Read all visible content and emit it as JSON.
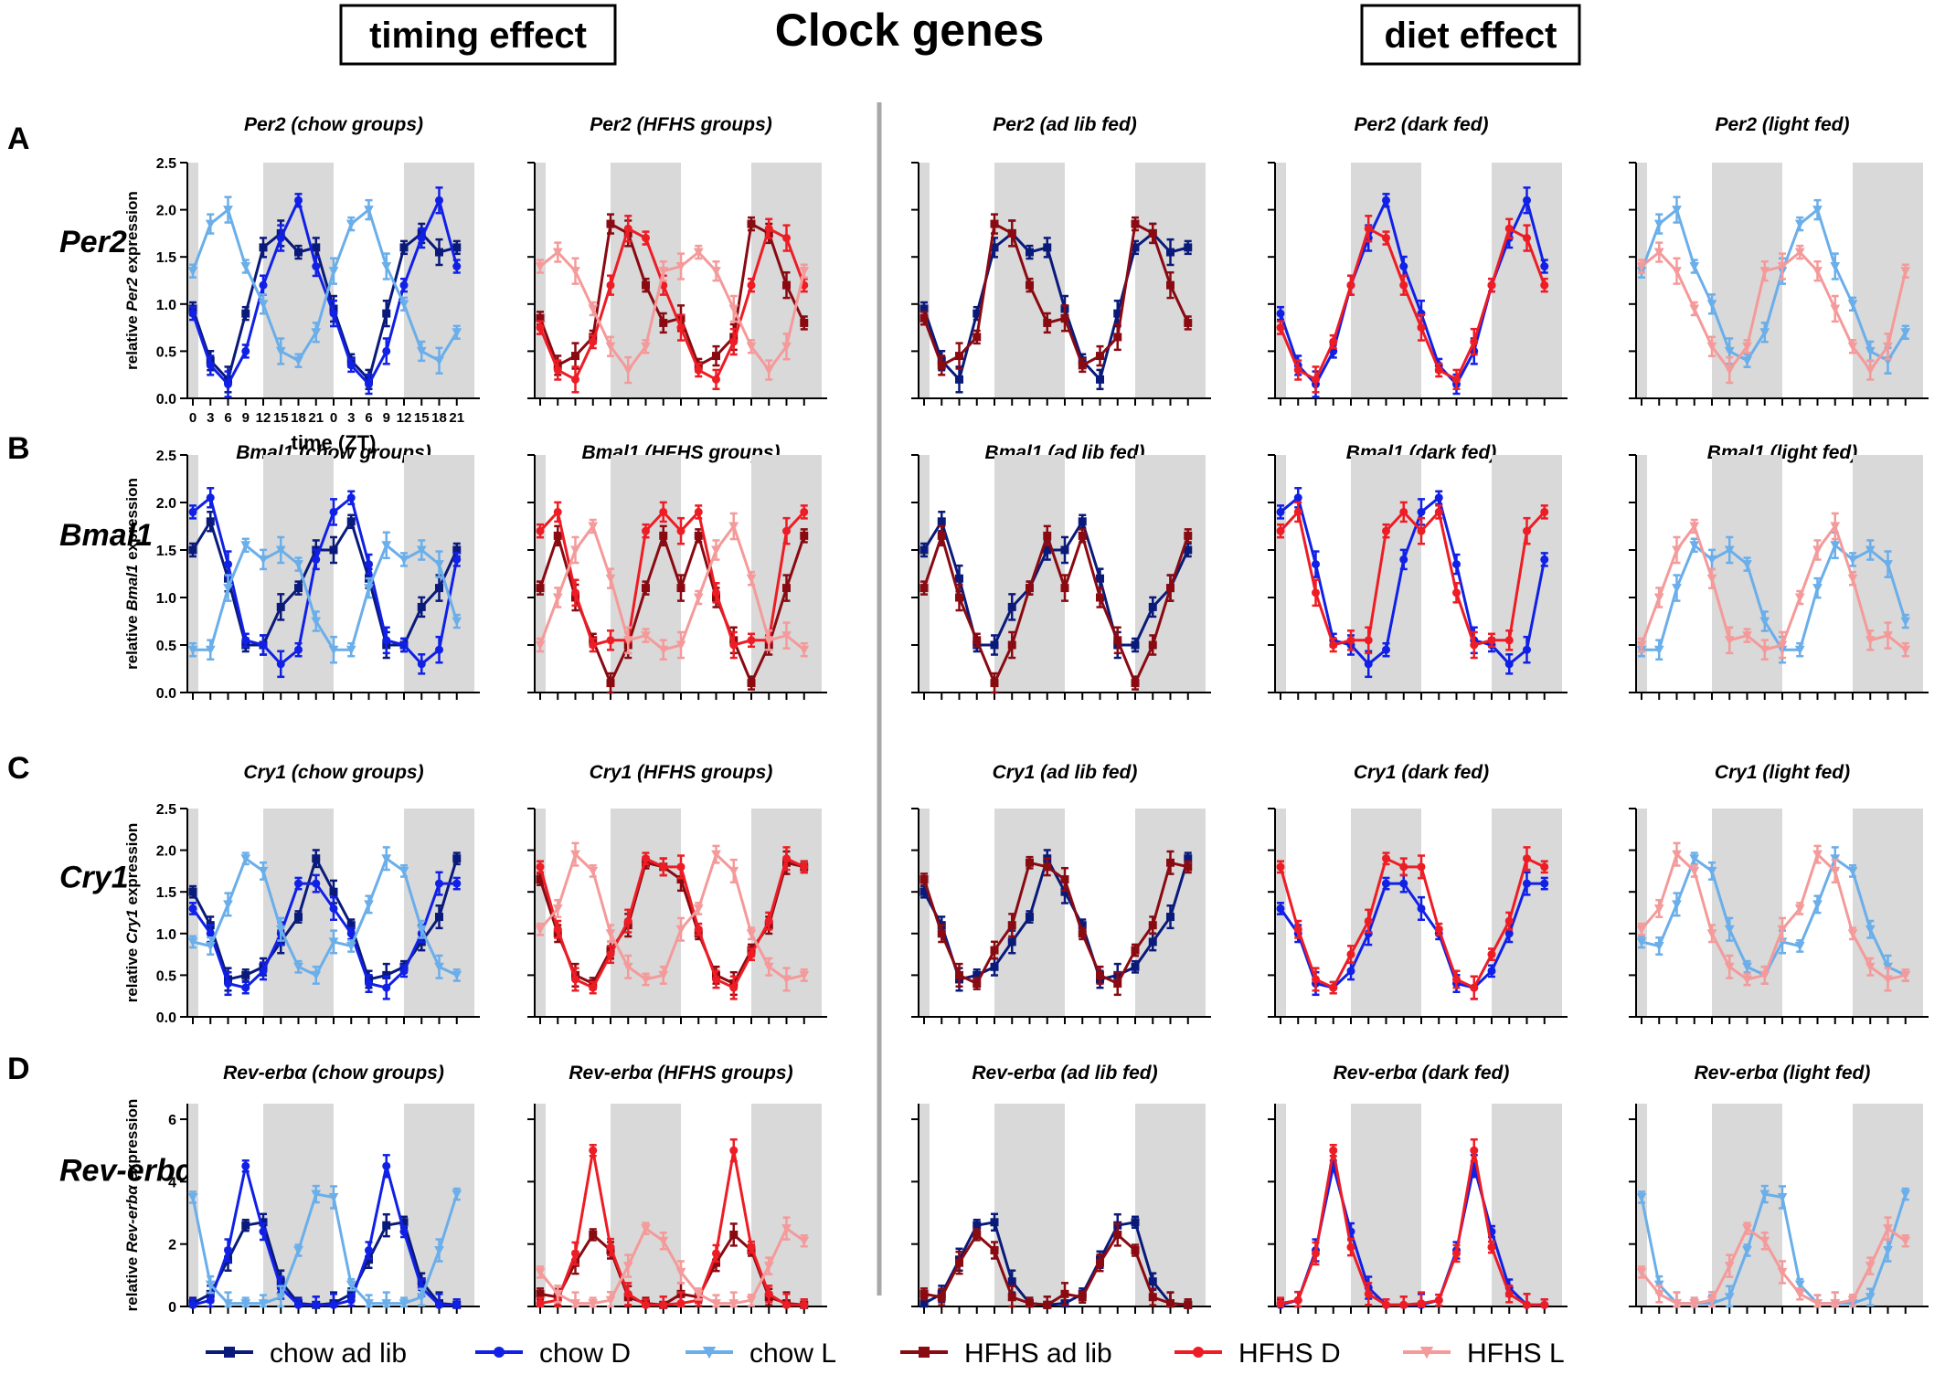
{
  "header": {
    "left_box": "timing effect",
    "title": "Clock genes",
    "right_box": "diet effect"
  },
  "axes_text": {
    "time_label": "time (ZT)",
    "ylabel_prefix": "relative ",
    "ylabel_suffix": " expression",
    "xticks": [
      "0",
      "3",
      "6",
      "9",
      "12",
      "15",
      "18",
      "21",
      "0",
      "3",
      "6",
      "9",
      "12",
      "15",
      "18",
      "21"
    ]
  },
  "series_legend": [
    {
      "key": "chow_adlib",
      "name": "chow ad lib",
      "color": "#0a1a7a",
      "marker": "square"
    },
    {
      "key": "chow_D",
      "name": "chow D",
      "color": "#1020e6",
      "marker": "circle"
    },
    {
      "key": "chow_L",
      "name": "chow L",
      "color": "#6aaeea",
      "marker": "triangle-down"
    },
    {
      "key": "hfhs_adlib",
      "name": "HFHS ad lib",
      "color": "#8a0a12",
      "marker": "square"
    },
    {
      "key": "hfhs_D",
      "name": "HFHS D",
      "color": "#ee1c24",
      "marker": "circle"
    },
    {
      "key": "hfhs_L",
      "name": "HFHS L",
      "color": "#f49a9a",
      "marker": "triangle-down"
    }
  ],
  "chart_data": {
    "type": "line",
    "x": [
      0,
      3,
      6,
      9,
      12,
      15,
      18,
      21,
      24,
      27,
      30,
      33,
      36,
      39,
      42,
      45
    ],
    "dark_phases": [
      [
        12,
        24
      ],
      [
        36,
        48
      ]
    ],
    "panel_columns": [
      {
        "title_suffix": "(chow groups)",
        "series": [
          "chow_adlib",
          "chow_D",
          "chow_L"
        ]
      },
      {
        "title_suffix": "(HFHS groups)",
        "series": [
          "hfhs_adlib",
          "hfhs_D",
          "hfhs_L"
        ]
      },
      {
        "title_suffix": "(ad lib fed)",
        "series": [
          "chow_adlib",
          "hfhs_adlib"
        ]
      },
      {
        "title_suffix": "(dark fed)",
        "series": [
          "chow_D",
          "hfhs_D"
        ]
      },
      {
        "title_suffix": "(light fed)",
        "series": [
          "chow_L",
          "hfhs_L"
        ]
      }
    ],
    "genes": [
      {
        "letter": "A",
        "name": "Per2",
        "ylim": [
          0,
          2.5
        ],
        "yticks": [
          "0.0",
          "0.5",
          "1.0",
          "1.5",
          "2.0",
          "2.5"
        ],
        "series": {
          "chow_adlib": [
            0.95,
            0.4,
            0.2,
            0.9,
            1.6,
            1.75,
            1.55,
            1.6,
            0.95,
            0.4,
            0.2,
            0.9,
            1.6,
            1.75,
            1.55,
            1.6
          ],
          "chow_D": [
            0.9,
            0.35,
            0.15,
            0.5,
            1.2,
            1.7,
            2.1,
            1.4,
            0.9,
            0.35,
            0.15,
            0.5,
            1.2,
            1.7,
            2.1,
            1.4
          ],
          "chow_L": [
            1.35,
            1.85,
            2.0,
            1.4,
            1.0,
            0.5,
            0.4,
            0.7,
            1.35,
            1.85,
            2.0,
            1.4,
            1.0,
            0.5,
            0.4,
            0.7
          ],
          "hfhs_adlib": [
            0.85,
            0.35,
            0.45,
            0.65,
            1.85,
            1.75,
            1.2,
            0.8,
            0.85,
            0.35,
            0.45,
            0.65,
            1.85,
            1.75,
            1.2,
            0.8
          ],
          "hfhs_D": [
            0.75,
            0.3,
            0.2,
            0.6,
            1.2,
            1.8,
            1.7,
            1.2,
            0.75,
            0.3,
            0.2,
            0.6,
            1.2,
            1.8,
            1.7,
            1.2
          ],
          "hfhs_L": [
            1.4,
            1.55,
            1.35,
            0.95,
            0.55,
            0.3,
            0.55,
            1.35,
            1.4,
            1.55,
            1.35,
            0.95,
            0.55,
            0.3,
            0.55,
            1.35
          ]
        }
      },
      {
        "letter": "B",
        "name": "Bmal1",
        "ylim": [
          0,
          2.5
        ],
        "yticks": [
          "0.0",
          "0.5",
          "1.0",
          "1.5",
          "2.0",
          "2.5"
        ],
        "series": {
          "chow_adlib": [
            1.5,
            1.8,
            1.2,
            0.5,
            0.5,
            0.9,
            1.1,
            1.5,
            1.5,
            1.8,
            1.2,
            0.5,
            0.5,
            0.9,
            1.1,
            1.5
          ],
          "chow_D": [
            1.9,
            2.05,
            1.35,
            0.55,
            0.5,
            0.3,
            0.45,
            1.4,
            1.9,
            2.05,
            1.35,
            0.55,
            0.5,
            0.3,
            0.45,
            1.4
          ],
          "chow_L": [
            0.45,
            0.45,
            1.1,
            1.55,
            1.4,
            1.5,
            1.35,
            0.75,
            0.45,
            0.45,
            1.1,
            1.55,
            1.4,
            1.5,
            1.35,
            0.75
          ],
          "hfhs_adlib": [
            1.1,
            1.65,
            1.0,
            0.55,
            0.1,
            0.5,
            1.1,
            1.65,
            1.1,
            1.65,
            1.0,
            0.55,
            0.1,
            0.5,
            1.1,
            1.65
          ],
          "hfhs_D": [
            1.7,
            1.9,
            1.05,
            0.5,
            0.55,
            0.55,
            1.7,
            1.9,
            1.7,
            1.9,
            1.05,
            0.5,
            0.55,
            0.55,
            1.7,
            1.9
          ],
          "hfhs_L": [
            0.5,
            1.0,
            1.5,
            1.75,
            1.2,
            0.55,
            0.6,
            0.45,
            0.5,
            1.0,
            1.5,
            1.75,
            1.2,
            0.55,
            0.6,
            0.45
          ]
        }
      },
      {
        "letter": "C",
        "name": "Cry1",
        "ylim": [
          0,
          2.5
        ],
        "yticks": [
          "0.0",
          "0.5",
          "1.0",
          "1.5",
          "2.0",
          "2.5"
        ],
        "series": {
          "chow_adlib": [
            1.5,
            1.1,
            0.45,
            0.5,
            0.6,
            0.9,
            1.2,
            1.9,
            1.5,
            1.1,
            0.45,
            0.5,
            0.6,
            0.9,
            1.2,
            1.9
          ],
          "chow_D": [
            1.3,
            1.0,
            0.4,
            0.35,
            0.55,
            1.0,
            1.6,
            1.6,
            1.3,
            1.0,
            0.4,
            0.35,
            0.55,
            1.0,
            1.6,
            1.6
          ],
          "chow_L": [
            0.9,
            0.85,
            1.35,
            1.9,
            1.75,
            1.05,
            0.6,
            0.5,
            0.9,
            0.85,
            1.35,
            1.9,
            1.75,
            1.05,
            0.6,
            0.5
          ],
          "hfhs_adlib": [
            1.65,
            1.0,
            0.5,
            0.4,
            0.8,
            1.1,
            1.85,
            1.8,
            1.65,
            1.0,
            0.5,
            0.4,
            0.8,
            1.1,
            1.85,
            1.8
          ],
          "hfhs_D": [
            1.8,
            1.05,
            0.45,
            0.35,
            0.75,
            1.15,
            1.9,
            1.8,
            1.8,
            1.05,
            0.45,
            0.35,
            0.75,
            1.15,
            1.9,
            1.8
          ],
          "hfhs_L": [
            1.05,
            1.3,
            1.95,
            1.75,
            1.0,
            0.6,
            0.45,
            0.5,
            1.05,
            1.3,
            1.95,
            1.75,
            1.0,
            0.6,
            0.45,
            0.5
          ]
        }
      },
      {
        "letter": "D",
        "name": "Rev-erbα",
        "ylim": [
          0,
          6.5
        ],
        "yticks": [
          "0",
          "2",
          "4",
          "6"
        ],
        "series": {
          "chow_adlib": [
            0.1,
            0.4,
            1.5,
            2.6,
            2.7,
            0.8,
            0.1,
            0.05,
            0.1,
            0.4,
            1.5,
            2.6,
            2.7,
            0.8,
            0.1,
            0.05
          ],
          "chow_D": [
            0.05,
            0.2,
            1.8,
            4.5,
            2.4,
            0.6,
            0.05,
            0.05,
            0.05,
            0.2,
            1.8,
            4.5,
            2.4,
            0.6,
            0.05,
            0.05
          ],
          "chow_L": [
            3.5,
            0.7,
            0.1,
            0.1,
            0.1,
            0.3,
            1.8,
            3.6,
            3.5,
            0.7,
            0.1,
            0.1,
            0.1,
            0.3,
            1.8,
            3.6
          ],
          "hfhs_adlib": [
            0.4,
            0.3,
            1.4,
            2.3,
            1.8,
            0.3,
            0.1,
            0.05,
            0.4,
            0.3,
            1.4,
            2.3,
            1.8,
            0.3,
            0.1,
            0.05
          ],
          "hfhs_D": [
            0.1,
            0.2,
            1.7,
            5.0,
            1.9,
            0.4,
            0.05,
            0.05,
            0.1,
            0.2,
            1.7,
            5.0,
            1.9,
            0.4,
            0.05,
            0.05
          ],
          "hfhs_L": [
            1.1,
            0.4,
            0.1,
            0.1,
            0.2,
            1.3,
            2.5,
            2.1,
            1.1,
            0.4,
            0.1,
            0.1,
            0.2,
            1.3,
            2.5,
            2.1
          ]
        }
      }
    ]
  }
}
